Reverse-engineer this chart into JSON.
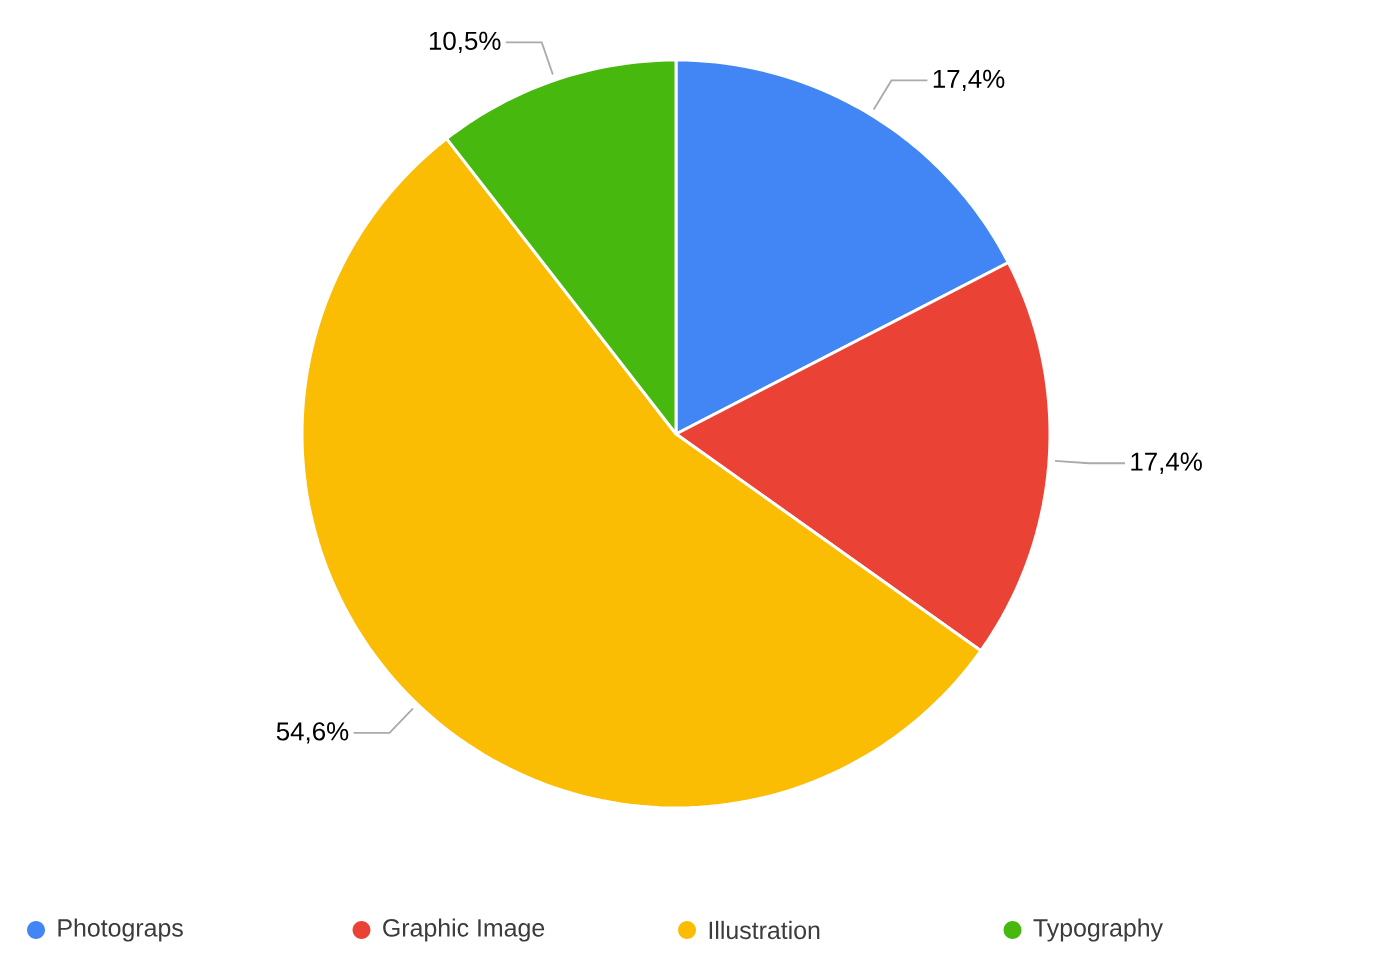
{
  "chart_data": {
    "type": "pie",
    "categories": [
      "Photograps",
      "Graphic Image",
      "Illustration",
      "Typography"
    ],
    "values": [
      17.4,
      17.4,
      54.6,
      10.5
    ],
    "colors": [
      "#4285f4",
      "#ea4335",
      "#fbbc04",
      "#46b80e"
    ],
    "value_labels": [
      "17,4%",
      "17,4%",
      "54,6%",
      "10,5%"
    ],
    "legend": "bottom"
  }
}
